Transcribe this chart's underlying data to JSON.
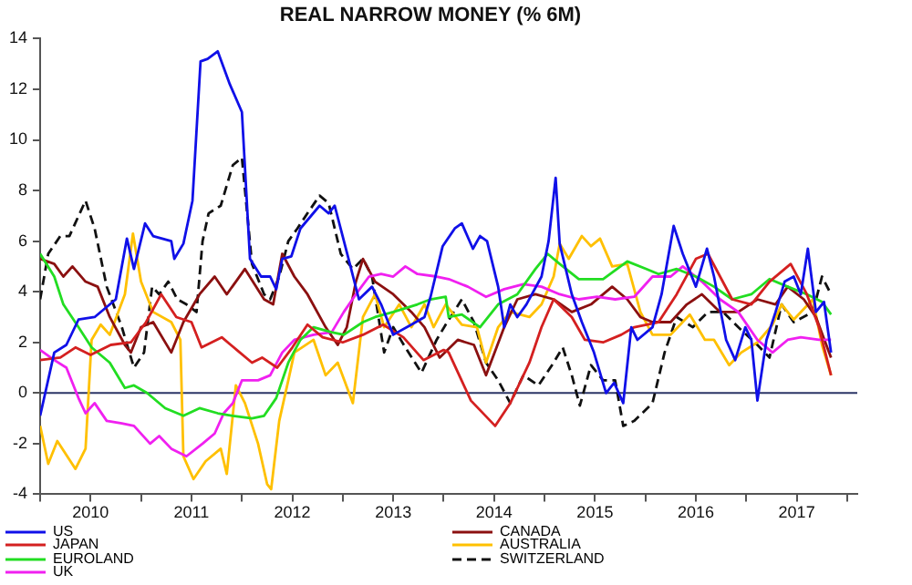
{
  "chart_data": {
    "type": "line",
    "title": "REAL NARROW MONEY (% 6M)",
    "xlim": [
      2010,
      2018.1
    ],
    "xticks": [
      {
        "value": 2010,
        "label": null
      },
      {
        "value": 2010.5,
        "label": "2010"
      },
      {
        "value": 2011,
        "label": null
      },
      {
        "value": 2011.5,
        "label": "2011"
      },
      {
        "value": 2012,
        "label": null
      },
      {
        "value": 2012.5,
        "label": "2012"
      },
      {
        "value": 2013,
        "label": null
      },
      {
        "value": 2013.5,
        "label": "2013"
      },
      {
        "value": 2014,
        "label": null
      },
      {
        "value": 2014.5,
        "label": "2014"
      },
      {
        "value": 2015,
        "label": null
      },
      {
        "value": 2015.5,
        "label": "2015"
      },
      {
        "value": 2016,
        "label": null
      },
      {
        "value": 2016.5,
        "label": "2016"
      },
      {
        "value": 2017,
        "label": null
      },
      {
        "value": 2017.5,
        "label": "2017"
      },
      {
        "value": 2018,
        "label": null
      }
    ],
    "ylim": [
      -4,
      14
    ],
    "yticks": [
      -4,
      -2,
      0,
      2,
      4,
      6,
      8,
      10,
      12,
      14
    ],
    "grid": false,
    "legend": "bottom left",
    "marker": "none",
    "ref_lines": [
      {
        "axis": "y",
        "value": 0,
        "label": null,
        "color": "#2b3566"
      }
    ],
    "series": [
      {
        "name": "US",
        "color": "#1010e8",
        "x": [
          2010.0,
          2010.14,
          2010.26,
          2010.38,
          2010.54,
          2010.75,
          2010.86,
          2010.93,
          2011.04,
          2011.12,
          2011.3,
          2011.33,
          2011.42,
          2011.51,
          2011.59,
          2011.66,
          2011.76,
          2011.88,
          2012.0,
          2012.08,
          2012.19,
          2012.28,
          2012.34,
          2012.4,
          2012.49,
          2012.58,
          2012.77,
          2012.86,
          2012.92,
          2013.07,
          2013.16,
          2013.29,
          2013.38,
          2013.5,
          2013.68,
          2013.81,
          2013.87,
          2013.99,
          2014.11,
          2014.18,
          2014.29,
          2014.36,
          2014.43,
          2014.54,
          2014.6,
          2014.66,
          2014.73,
          2014.82,
          2014.97,
          2015.04,
          2015.11,
          2015.15,
          2015.27,
          2015.37,
          2015.49,
          2015.61,
          2015.69,
          2015.78,
          2015.86,
          2015.92,
          2016.07,
          2016.16,
          2016.28,
          2016.37,
          2016.5,
          2016.61,
          2016.68,
          2016.8,
          2016.89,
          2016.99,
          2017.05,
          2017.11,
          2017.2,
          2017.29,
          2017.38,
          2017.47,
          2017.54,
          2017.61,
          2017.69,
          2017.77,
          2017.84
        ],
        "values": [
          -0.9,
          1.6,
          1.9,
          2.9,
          3.0,
          3.7,
          6.1,
          4.9,
          6.7,
          6.2,
          6.0,
          5.3,
          5.9,
          7.6,
          13.1,
          13.2,
          13.5,
          12.2,
          11.1,
          5.3,
          4.6,
          4.6,
          4.1,
          5.3,
          5.4,
          6.5,
          7.4,
          7.1,
          7.4,
          5.1,
          3.7,
          4.2,
          3.5,
          2.3,
          2.7,
          3.0,
          3.8,
          5.8,
          6.5,
          6.7,
          5.7,
          6.2,
          6.0,
          4.2,
          2.6,
          3.5,
          3.0,
          3.5,
          4.6,
          6.0,
          8.5,
          5.9,
          3.9,
          2.8,
          1.6,
          0.0,
          0.4,
          -0.4,
          2.6,
          2.1,
          2.6,
          3.9,
          6.6,
          5.5,
          4.2,
          5.7,
          4.6,
          2.1,
          1.3,
          2.6,
          2.1,
          -0.3,
          2.1,
          3.2,
          4.4,
          4.6,
          3.9,
          5.7,
          3.2,
          3.6,
          1.6
        ]
      },
      {
        "name": "JAPAN",
        "color": "#d42020",
        "x": [
          2010.0,
          2010.2,
          2010.35,
          2010.5,
          2010.7,
          2010.9,
          2011.05,
          2011.2,
          2011.35,
          2011.5,
          2011.6,
          2011.8,
          2011.95,
          2012.1,
          2012.2,
          2012.35,
          2012.5,
          2012.65,
          2012.8,
          2013.0,
          2013.2,
          2013.4,
          2013.6,
          2013.8,
          2014.0,
          2014.05,
          2014.27,
          2014.51,
          2014.66,
          2014.85,
          2014.97,
          2015.09,
          2015.27,
          2015.4,
          2015.58,
          2015.76,
          2015.89,
          2016.13,
          2016.31,
          2016.5,
          2016.62,
          2016.74,
          2016.86,
          2017.05,
          2017.23,
          2017.44,
          2017.6,
          2017.72,
          2017.84
        ],
        "values": [
          1.3,
          1.4,
          1.8,
          1.5,
          1.9,
          2.0,
          2.8,
          3.9,
          3.0,
          2.8,
          1.8,
          2.2,
          1.7,
          1.2,
          1.4,
          1.0,
          1.8,
          2.7,
          2.2,
          2.0,
          2.3,
          2.7,
          2.2,
          1.3,
          1.7,
          1.6,
          -0.3,
          -1.3,
          -0.4,
          1.2,
          2.6,
          3.7,
          3.0,
          2.1,
          2.0,
          2.3,
          2.6,
          2.8,
          3.9,
          5.3,
          5.5,
          4.6,
          3.7,
          3.5,
          4.4,
          5.1,
          3.9,
          2.6,
          0.7
        ]
      },
      {
        "name": "EUROLAND",
        "color": "#22dd22",
        "x": [
          2010.0,
          2010.14,
          2010.23,
          2010.38,
          2010.51,
          2010.69,
          2010.84,
          2010.93,
          2011.06,
          2011.24,
          2011.42,
          2011.58,
          2011.76,
          2011.91,
          2012.1,
          2012.22,
          2012.34,
          2012.46,
          2012.58,
          2012.71,
          2012.89,
          2013.01,
          2013.2,
          2013.32,
          2013.5,
          2013.74,
          2013.87,
          2014.02,
          2014.05,
          2014.18,
          2014.36,
          2014.54,
          2014.73,
          2014.91,
          2015.03,
          2015.15,
          2015.34,
          2015.58,
          2015.82,
          2016.01,
          2016.13,
          2016.31,
          2016.5,
          2016.68,
          2016.86,
          2017.05,
          2017.23,
          2017.41,
          2017.6,
          2017.75,
          2017.84
        ],
        "values": [
          5.5,
          4.6,
          3.5,
          2.6,
          1.8,
          1.2,
          0.2,
          0.3,
          0.0,
          -0.6,
          -0.9,
          -0.6,
          -0.8,
          -0.9,
          -1.0,
          -0.9,
          -0.2,
          1.2,
          2.1,
          2.6,
          2.4,
          2.3,
          2.8,
          3.0,
          3.2,
          3.5,
          3.7,
          3.8,
          3.0,
          3.1,
          2.6,
          3.5,
          3.9,
          4.9,
          5.5,
          5.1,
          4.5,
          4.5,
          5.2,
          4.9,
          4.7,
          4.9,
          4.6,
          4.2,
          3.7,
          3.9,
          4.5,
          4.2,
          3.9,
          3.6,
          3.1
        ]
      },
      {
        "name": "UK",
        "color": "#f020f0",
        "x": [
          2010.0,
          2010.14,
          2010.26,
          2010.38,
          2010.45,
          2010.54,
          2010.66,
          2010.81,
          2010.93,
          2011.09,
          2011.18,
          2011.3,
          2011.45,
          2011.61,
          2011.73,
          2011.82,
          2011.91,
          2012.0,
          2012.16,
          2012.28,
          2012.4,
          2012.52,
          2012.71,
          2012.89,
          2013.01,
          2013.13,
          2013.26,
          2013.38,
          2013.5,
          2013.62,
          2013.74,
          2013.93,
          2014.05,
          2014.24,
          2014.42,
          2014.6,
          2014.79,
          2014.97,
          2015.15,
          2015.34,
          2015.52,
          2015.7,
          2015.89,
          2016.07,
          2016.25,
          2016.37,
          2016.56,
          2016.74,
          2016.92,
          2017.11,
          2017.26,
          2017.41,
          2017.54,
          2017.72,
          2017.84
        ],
        "values": [
          1.7,
          1.3,
          1.0,
          -0.2,
          -0.8,
          -0.4,
          -1.1,
          -1.2,
          -1.3,
          -2.0,
          -1.7,
          -2.2,
          -2.5,
          -2.0,
          -1.6,
          -0.8,
          -0.4,
          0.5,
          0.5,
          0.7,
          1.6,
          2.1,
          2.3,
          2.4,
          3.2,
          3.9,
          4.6,
          4.7,
          4.6,
          5.0,
          4.7,
          4.6,
          4.5,
          4.2,
          3.8,
          4.1,
          4.3,
          4.2,
          3.9,
          3.7,
          3.8,
          3.7,
          3.8,
          4.6,
          4.6,
          5.0,
          4.4,
          3.7,
          3.2,
          2.1,
          1.6,
          2.1,
          2.2,
          2.1,
          2.1
        ]
      },
      {
        "name": "CANADA",
        "color": "#8b1010",
        "x": [
          2010.0,
          2010.14,
          2010.23,
          2010.32,
          2010.45,
          2010.57,
          2010.69,
          2010.84,
          2010.9,
          2011.0,
          2011.12,
          2011.3,
          2011.42,
          2011.58,
          2011.73,
          2011.85,
          2011.94,
          2012.03,
          2012.22,
          2012.31,
          2012.4,
          2012.52,
          2012.65,
          2012.83,
          2012.95,
          2013.04,
          2013.13,
          2013.2,
          2013.32,
          2013.5,
          2013.68,
          2013.81,
          2013.96,
          2014.14,
          2014.3,
          2014.42,
          2014.6,
          2014.73,
          2014.91,
          2015.09,
          2015.27,
          2015.46,
          2015.67,
          2015.82,
          2015.95,
          2016.07,
          2016.25,
          2016.41,
          2016.56,
          2016.74,
          2016.92,
          2017.11,
          2017.29,
          2017.41,
          2017.57,
          2017.69,
          2017.84
        ],
        "values": [
          5.3,
          5.1,
          4.6,
          5.0,
          4.4,
          4.2,
          3.0,
          1.9,
          1.6,
          2.6,
          2.8,
          1.6,
          2.8,
          3.9,
          4.6,
          3.9,
          4.4,
          4.9,
          3.7,
          3.5,
          5.5,
          4.6,
          3.9,
          2.6,
          1.9,
          2.6,
          4.4,
          5.3,
          4.4,
          3.9,
          3.2,
          2.6,
          1.4,
          2.1,
          1.9,
          0.7,
          2.6,
          3.7,
          3.9,
          3.7,
          3.2,
          3.5,
          4.2,
          3.7,
          3.0,
          2.8,
          2.8,
          3.5,
          3.9,
          3.2,
          3.2,
          3.7,
          3.5,
          4.2,
          3.7,
          3.0,
          1.4
        ]
      },
      {
        "name": "AUSTRALIA",
        "color": "#ffc000",
        "x": [
          2010.0,
          2010.08,
          2010.17,
          2010.35,
          2010.45,
          2010.51,
          2010.6,
          2010.69,
          2010.84,
          2010.92,
          2011.0,
          2011.12,
          2011.3,
          2011.39,
          2011.42,
          2011.52,
          2011.64,
          2011.79,
          2011.85,
          2011.94,
          2012.03,
          2012.16,
          2012.25,
          2012.29,
          2012.37,
          2012.46,
          2012.52,
          2012.71,
          2012.83,
          2012.95,
          2013.1,
          2013.2,
          2013.32,
          2013.41,
          2013.56,
          2013.68,
          2013.81,
          2013.9,
          2014.02,
          2014.18,
          2014.33,
          2014.42,
          2014.54,
          2014.66,
          2014.85,
          2014.97,
          2015.09,
          2015.15,
          2015.24,
          2015.37,
          2015.46,
          2015.55,
          2015.67,
          2015.82,
          2015.95,
          2016.07,
          2016.25,
          2016.44,
          2016.59,
          2016.68,
          2016.83,
          2016.95,
          2017.11,
          2017.26,
          2017.35,
          2017.47,
          2017.66,
          2017.75,
          2017.84
        ],
        "values": [
          -1.3,
          -2.8,
          -1.9,
          -3.0,
          -2.2,
          2.1,
          2.7,
          2.3,
          3.9,
          6.3,
          4.4,
          3.2,
          2.8,
          2.1,
          -2.5,
          -3.4,
          -2.7,
          -2.2,
          -3.2,
          0.3,
          -0.4,
          -2.0,
          -3.6,
          -3.8,
          -1.1,
          0.5,
          1.6,
          2.1,
          0.7,
          1.2,
          -0.4,
          3.0,
          3.9,
          2.6,
          3.5,
          2.6,
          3.5,
          2.6,
          3.5,
          2.7,
          2.6,
          1.2,
          2.6,
          3.2,
          3.0,
          3.5,
          4.6,
          5.9,
          5.3,
          6.2,
          5.8,
          6.1,
          5.0,
          5.1,
          3.2,
          2.3,
          2.3,
          3.1,
          2.1,
          2.1,
          1.1,
          1.6,
          2.0,
          2.7,
          3.5,
          2.9,
          3.7,
          1.9,
          0.7
        ]
      },
      {
        "name": "SWITZERLAND",
        "color": "#111111",
        "line_style": "dashed",
        "x": [
          2010.0,
          2010.08,
          2010.2,
          2010.29,
          2010.45,
          2010.54,
          2010.66,
          2010.81,
          2010.93,
          2011.03,
          2011.11,
          2011.18,
          2011.27,
          2011.36,
          2011.45,
          2011.55,
          2011.61,
          2011.67,
          2011.79,
          2011.91,
          2012.0,
          2012.1,
          2012.22,
          2012.28,
          2012.37,
          2012.46,
          2012.55,
          2012.65,
          2012.77,
          2012.86,
          2012.98,
          2013.1,
          2013.2,
          2013.29,
          2013.41,
          2013.5,
          2013.62,
          2013.78,
          2013.93,
          2014.02,
          2014.18,
          2014.3,
          2014.42,
          2014.54,
          2014.66,
          2014.79,
          2014.94,
          2015.09,
          2015.18,
          2015.27,
          2015.35,
          2015.46,
          2015.58,
          2015.7,
          2015.78,
          2015.89,
          2016.07,
          2016.19,
          2016.31,
          2016.47,
          2016.62,
          2016.77,
          2016.92,
          2017.11,
          2017.23,
          2017.35,
          2017.47,
          2017.66,
          2017.75,
          2017.84
        ],
        "values": [
          3.7,
          5.5,
          6.2,
          6.2,
          7.6,
          6.5,
          4.2,
          2.6,
          1.0,
          1.6,
          4.2,
          3.9,
          4.4,
          3.7,
          3.5,
          3.2,
          6.0,
          7.1,
          7.4,
          9.0,
          9.3,
          5.1,
          3.9,
          3.7,
          4.6,
          6.0,
          6.5,
          7.1,
          7.8,
          7.5,
          5.5,
          4.9,
          5.3,
          4.6,
          1.6,
          2.6,
          1.8,
          0.8,
          2.1,
          2.7,
          3.7,
          2.8,
          1.2,
          0.5,
          -0.4,
          0.7,
          0.3,
          1.2,
          1.8,
          0.7,
          -0.5,
          1.1,
          0.5,
          0.5,
          -1.3,
          -1.1,
          -0.4,
          1.6,
          3.0,
          2.6,
          3.2,
          3.2,
          2.6,
          1.9,
          1.4,
          3.5,
          2.8,
          3.2,
          4.6,
          3.9
        ]
      }
    ]
  }
}
